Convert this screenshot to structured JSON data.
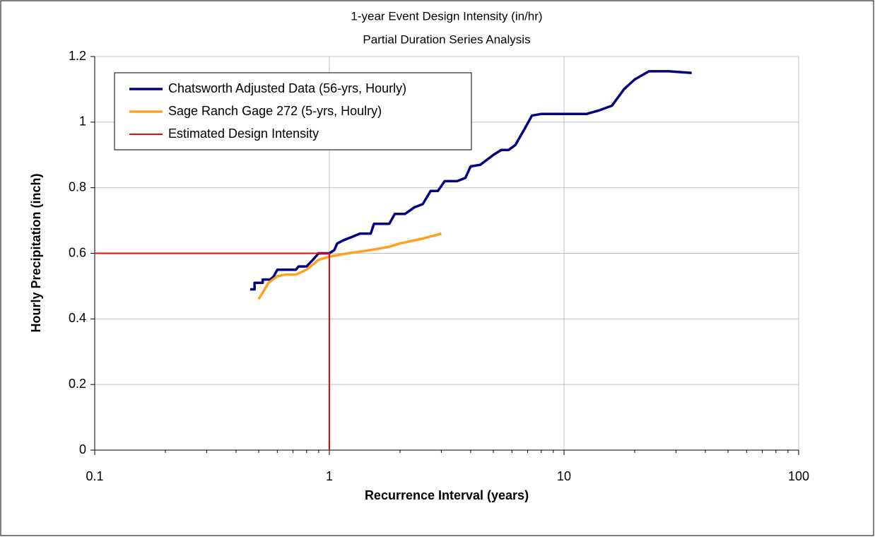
{
  "chart_data": {
    "type": "line",
    "title": "1-year Event Design Intensity (in/hr)",
    "subtitle": "Partial Duration Series Analysis",
    "x_label": "Recurrence Interval (years)",
    "y_label": "Hourly Precipitation (inch)",
    "xscale": "log",
    "xlim": [
      0.1,
      100
    ],
    "xticks": [
      0.1,
      1,
      10,
      100
    ],
    "xminorticks": [
      0.2,
      0.3,
      0.4,
      0.5,
      0.6,
      0.7,
      0.8,
      0.9,
      2,
      3,
      4,
      5,
      6,
      7,
      8,
      9,
      20,
      30,
      40,
      50,
      60,
      70,
      80,
      90
    ],
    "ylim": [
      0,
      1.2
    ],
    "yticks": [
      0,
      0.2,
      0.4,
      0.6,
      0.8,
      1,
      1.2
    ],
    "grid": true,
    "legend": "upper left",
    "series": [
      {
        "name": "Chatsworth Adjusted Data (56-yrs, Hourly)",
        "color": "#000080",
        "x": [
          0.46,
          0.48,
          0.48,
          0.52,
          0.52,
          0.56,
          0.58,
          0.6,
          0.72,
          0.74,
          0.8,
          0.85,
          0.9,
          1.0,
          1.05,
          1.08,
          1.15,
          1.25,
          1.35,
          1.5,
          1.55,
          1.8,
          1.9,
          2.1,
          2.3,
          2.5,
          2.7,
          2.9,
          3.1,
          3.5,
          3.8,
          4.0,
          4.4,
          5.0,
          5.4,
          5.8,
          6.2,
          6.8,
          7.3,
          8.0,
          12.5,
          14,
          16,
          18,
          20,
          23,
          28,
          35
        ],
        "values": [
          0.49,
          0.49,
          0.51,
          0.51,
          0.52,
          0.52,
          0.53,
          0.55,
          0.55,
          0.56,
          0.56,
          0.58,
          0.6,
          0.6,
          0.61,
          0.63,
          0.64,
          0.65,
          0.66,
          0.66,
          0.69,
          0.69,
          0.72,
          0.72,
          0.74,
          0.75,
          0.79,
          0.79,
          0.82,
          0.82,
          0.83,
          0.865,
          0.87,
          0.9,
          0.915,
          0.915,
          0.93,
          0.98,
          1.02,
          1.025,
          1.025,
          1.035,
          1.05,
          1.1,
          1.13,
          1.155,
          1.155,
          1.15
        ]
      },
      {
        "name": "Sage Ranch Gage 272 (5-yrs, Houlry)",
        "color": "#ffa020",
        "x": [
          0.5,
          0.55,
          0.6,
          0.65,
          0.72,
          0.8,
          0.9,
          1.0,
          1.2,
          1.5,
          1.8,
          2.0,
          2.5,
          3.0
        ],
        "values": [
          0.46,
          0.51,
          0.53,
          0.535,
          0.535,
          0.55,
          0.58,
          0.59,
          0.6,
          0.61,
          0.62,
          0.63,
          0.645,
          0.66
        ]
      },
      {
        "name": "Estimated Design Intensity",
        "color": "#ff0000",
        "x": [
          0.1,
          1,
          1
        ],
        "values": [
          0.6,
          0.6,
          0
        ]
      }
    ]
  }
}
